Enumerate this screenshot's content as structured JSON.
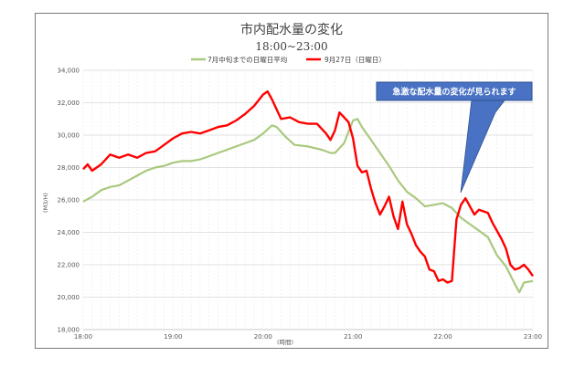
{
  "chart_data": {
    "type": "line",
    "title": "市内配水量の変化",
    "subtitle": "18:00~23:00",
    "xlabel": "(時間)",
    "ylabel": "(M3/H)",
    "ylim": [
      18000,
      34000
    ],
    "xlim": [
      18,
      23
    ],
    "grid": true,
    "legend_position": "top",
    "y_ticks": [
      18000,
      20000,
      22000,
      24000,
      26000,
      28000,
      30000,
      32000,
      34000
    ],
    "y_tick_labels": [
      "18,000",
      "20,000",
      "22,000",
      "24,000",
      "26,000",
      "28,000",
      "30,000",
      "32,000",
      "34,000"
    ],
    "x_ticks": [
      18,
      19,
      20,
      21,
      22,
      23
    ],
    "x_tick_labels": [
      "18:00",
      "19:00",
      "20:00",
      "21:00",
      "22:00",
      "23:00"
    ],
    "series": [
      {
        "name": "7月中旬までの日曜日平均",
        "color": "#a9c97e",
        "points": [
          [
            18.0,
            25900
          ],
          [
            18.1,
            26200
          ],
          [
            18.2,
            26600
          ],
          [
            18.3,
            26800
          ],
          [
            18.4,
            26900
          ],
          [
            18.5,
            27200
          ],
          [
            18.6,
            27500
          ],
          [
            18.7,
            27800
          ],
          [
            18.8,
            28000
          ],
          [
            18.9,
            28100
          ],
          [
            19.0,
            28300
          ],
          [
            19.1,
            28400
          ],
          [
            19.2,
            28400
          ],
          [
            19.3,
            28500
          ],
          [
            19.4,
            28700
          ],
          [
            19.5,
            28900
          ],
          [
            19.6,
            29100
          ],
          [
            19.7,
            29300
          ],
          [
            19.8,
            29500
          ],
          [
            19.9,
            29700
          ],
          [
            20.0,
            30100
          ],
          [
            20.1,
            30600
          ],
          [
            20.15,
            30500
          ],
          [
            20.25,
            29900
          ],
          [
            20.35,
            29400
          ],
          [
            20.5,
            29300
          ],
          [
            20.65,
            29100
          ],
          [
            20.75,
            28900
          ],
          [
            20.8,
            28900
          ],
          [
            20.9,
            29500
          ],
          [
            21.0,
            30900
          ],
          [
            21.05,
            31000
          ],
          [
            21.1,
            30500
          ],
          [
            21.2,
            29700
          ],
          [
            21.3,
            28900
          ],
          [
            21.4,
            28100
          ],
          [
            21.5,
            27200
          ],
          [
            21.6,
            26500
          ],
          [
            21.7,
            26100
          ],
          [
            21.8,
            25600
          ],
          [
            21.9,
            25700
          ],
          [
            22.0,
            25800
          ],
          [
            22.1,
            25500
          ],
          [
            22.2,
            24900
          ],
          [
            22.3,
            24500
          ],
          [
            22.4,
            24100
          ],
          [
            22.5,
            23700
          ],
          [
            22.6,
            22600
          ],
          [
            22.7,
            21900
          ],
          [
            22.8,
            20800
          ],
          [
            22.85,
            20300
          ],
          [
            22.9,
            20900
          ],
          [
            23.0,
            21000
          ]
        ]
      },
      {
        "name": "9月27日（日曜日）",
        "color": "#ff0000",
        "points": [
          [
            18.0,
            27900
          ],
          [
            18.05,
            28200
          ],
          [
            18.1,
            27800
          ],
          [
            18.2,
            28200
          ],
          [
            18.3,
            28800
          ],
          [
            18.4,
            28600
          ],
          [
            18.5,
            28800
          ],
          [
            18.6,
            28600
          ],
          [
            18.7,
            28900
          ],
          [
            18.8,
            29000
          ],
          [
            18.9,
            29400
          ],
          [
            19.0,
            29800
          ],
          [
            19.1,
            30100
          ],
          [
            19.2,
            30200
          ],
          [
            19.3,
            30100
          ],
          [
            19.4,
            30300
          ],
          [
            19.5,
            30500
          ],
          [
            19.6,
            30600
          ],
          [
            19.7,
            30900
          ],
          [
            19.8,
            31300
          ],
          [
            19.9,
            31800
          ],
          [
            20.0,
            32500
          ],
          [
            20.05,
            32700
          ],
          [
            20.1,
            32200
          ],
          [
            20.2,
            31000
          ],
          [
            20.3,
            31100
          ],
          [
            20.4,
            30800
          ],
          [
            20.5,
            30700
          ],
          [
            20.6,
            30700
          ],
          [
            20.7,
            30100
          ],
          [
            20.75,
            29700
          ],
          [
            20.8,
            30300
          ],
          [
            20.85,
            31400
          ],
          [
            20.9,
            31100
          ],
          [
            20.95,
            30800
          ],
          [
            21.0,
            29800
          ],
          [
            21.05,
            28100
          ],
          [
            21.1,
            27700
          ],
          [
            21.15,
            27800
          ],
          [
            21.2,
            26700
          ],
          [
            21.25,
            25800
          ],
          [
            21.3,
            25100
          ],
          [
            21.35,
            25600
          ],
          [
            21.4,
            26200
          ],
          [
            21.45,
            25000
          ],
          [
            21.5,
            24200
          ],
          [
            21.55,
            25900
          ],
          [
            21.6,
            24500
          ],
          [
            21.65,
            23900
          ],
          [
            21.7,
            23200
          ],
          [
            21.75,
            22800
          ],
          [
            21.8,
            22500
          ],
          [
            21.85,
            21700
          ],
          [
            21.9,
            21600
          ],
          [
            21.95,
            21000
          ],
          [
            22.0,
            21100
          ],
          [
            22.05,
            20900
          ],
          [
            22.1,
            21000
          ],
          [
            22.15,
            24800
          ],
          [
            22.2,
            25700
          ],
          [
            22.25,
            26100
          ],
          [
            22.3,
            25600
          ],
          [
            22.35,
            25100
          ],
          [
            22.4,
            25400
          ],
          [
            22.5,
            25200
          ],
          [
            22.55,
            24600
          ],
          [
            22.6,
            24100
          ],
          [
            22.65,
            23600
          ],
          [
            22.7,
            23000
          ],
          [
            22.75,
            22000
          ],
          [
            22.8,
            21700
          ],
          [
            22.85,
            21800
          ],
          [
            22.9,
            22000
          ],
          [
            22.95,
            21700
          ],
          [
            23.0,
            21300
          ]
        ]
      }
    ],
    "annotations": [
      {
        "text": "急激な配水量の変化が見られます",
        "x": 22.25,
        "y": 26500
      }
    ]
  }
}
